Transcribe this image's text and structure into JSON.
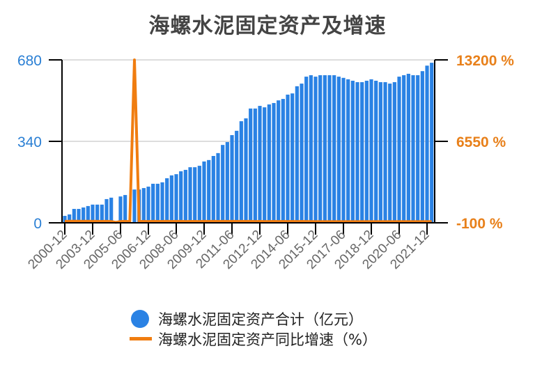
{
  "title": "海螺水泥固定资产及增速",
  "colors": {
    "bar": "#2a82e4",
    "line": "#f07d10",
    "left_axis": "#2a7fd4",
    "right_axis": "#e8801a",
    "grid": "#dddddd",
    "axis": "#000000"
  },
  "legend": {
    "items": [
      {
        "label": "海螺水泥固定资产合计（亿元）",
        "type": "dot"
      },
      {
        "label": "海螺水泥固定资产同比增速（%）",
        "type": "line"
      }
    ]
  },
  "chart_data": {
    "type": "bar+line",
    "title": "海螺水泥固定资产及增速",
    "xlabel": "",
    "ylabel_left": "",
    "ylabel_right": "",
    "left_axis": {
      "ticks": [
        "0",
        "340",
        "680"
      ],
      "range": [
        0,
        680
      ]
    },
    "right_axis": {
      "ticks": [
        "-100 %",
        "6550 %",
        "13200 %"
      ],
      "range": [
        -100,
        13200
      ]
    },
    "x_tick_labels": [
      "2000-12",
      "2003-12",
      "2005-06",
      "2006-12",
      "2008-06",
      "2009-12",
      "2011-06",
      "2012-12",
      "2014-06",
      "2015-12",
      "2017-06",
      "2018-12",
      "2020-06",
      "2021-12"
    ],
    "x_tick_index": [
      0,
      6,
      12,
      18,
      24,
      30,
      36,
      42,
      48,
      54,
      60,
      66,
      72,
      78
    ],
    "grid": true,
    "legend_position": "bottom",
    "series": [
      {
        "name": "海螺水泥固定资产合计（亿元）",
        "type": "bar",
        "axis": "left",
        "values": [
          29,
          35,
          58,
          58,
          64,
          70,
          76,
          76,
          76,
          99,
          105,
          null,
          110,
          116,
          null,
          139,
          139,
          145,
          151,
          163,
          163,
          169,
          186,
          198,
          203,
          215,
          221,
          232,
          232,
          238,
          256,
          262,
          279,
          291,
          325,
          337,
          366,
          384,
          424,
          436,
          477,
          477,
          488,
          482,
          494,
          500,
          511,
          517,
          535,
          540,
          570,
          581,
          610,
          616,
          610,
          616,
          616,
          616,
          616,
          610,
          605,
          599,
          593,
          587,
          587,
          593,
          599,
          593,
          587,
          587,
          581,
          587,
          610,
          616,
          622,
          616,
          616,
          633,
          656,
          668
        ]
      },
      {
        "name": "海螺水泥固定资产同比增速（%）",
        "type": "line",
        "axis": "right",
        "values": [
          20,
          25,
          30,
          25,
          20,
          25,
          20,
          20,
          15,
          20,
          10,
          -60,
          10,
          20,
          0,
          13200,
          20,
          15,
          10,
          20,
          15,
          15,
          20,
          15,
          15,
          20,
          10,
          15,
          15,
          10,
          20,
          15,
          20,
          15,
          20,
          15,
          20,
          15,
          20,
          15,
          20,
          10,
          15,
          10,
          10,
          15,
          10,
          15,
          10,
          15,
          10,
          15,
          10,
          10,
          5,
          5,
          5,
          5,
          5,
          5,
          0,
          0,
          0,
          0,
          0,
          0,
          0,
          0,
          0,
          0,
          0,
          0,
          5,
          5,
          5,
          5,
          5,
          5,
          5,
          5
        ]
      }
    ]
  }
}
